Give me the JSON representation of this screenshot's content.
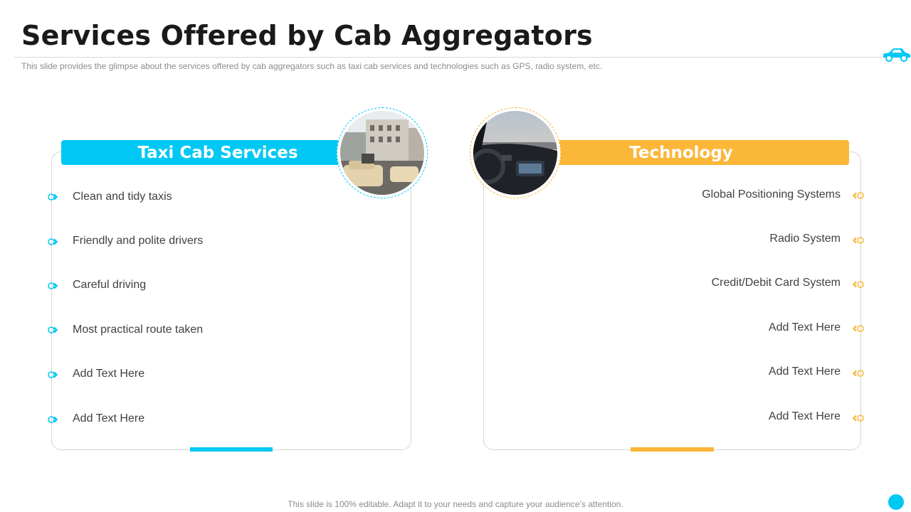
{
  "title": "Services Offered by Cab Aggregators",
  "subtitle": "This slide provides the glimpse about the services offered by cab aggregators such as taxi cab services and technologies such as GPS, radio system, etc.",
  "colors": {
    "accent_blue": "#00c8f5",
    "accent_orange": "#fbb737"
  },
  "icons": {
    "header": "car-icon",
    "left_bullet": "circle-chevron-icon",
    "right_bullet": "circle-chevron-icon"
  },
  "left_panel": {
    "heading": "Taxi Cab Services",
    "image": "street-taxis-photo",
    "items": [
      "Clean and tidy taxis",
      "Friendly and polite drivers",
      "Careful driving",
      "Most practical route taken",
      "Add Text Here",
      "Add Text Here"
    ]
  },
  "right_panel": {
    "heading": "Technology",
    "image": "car-dashboard-photo",
    "items": [
      "Global Positioning Systems",
      "Radio System",
      "Credit/Debit Card System",
      "Add Text Here",
      "Add Text Here",
      "Add Text Here"
    ]
  },
  "footer": "This slide is 100% editable. Adapt it to your needs and capture your audience’s attention."
}
